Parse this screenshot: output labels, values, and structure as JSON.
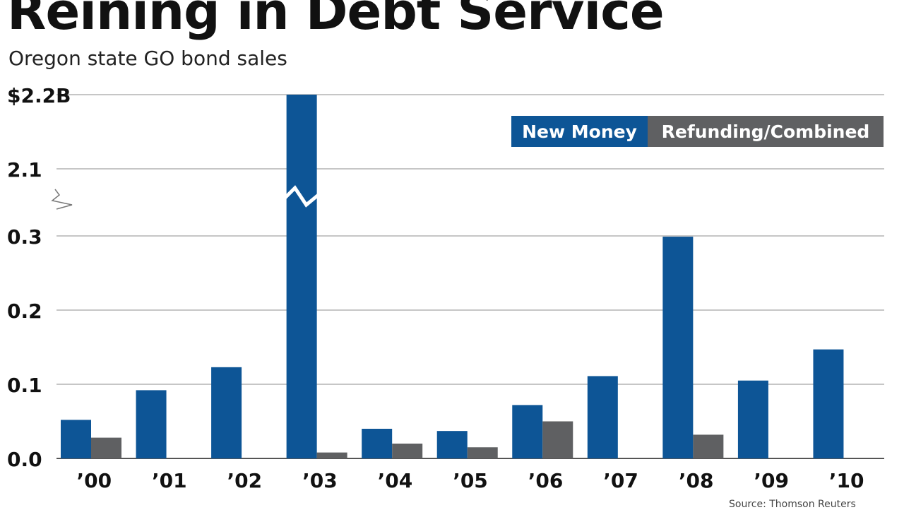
{
  "title": "Reining in Debt Service",
  "subtitle": "Oregon state GO bond sales",
  "source": "Source: Thomson Reuters",
  "colors": {
    "new_money": "#0d5596",
    "refunding": "#5f6062",
    "grid": "#b3b3b3"
  },
  "chart_data": {
    "type": "bar",
    "title": "Reining in Debt Service",
    "subtitle": "Oregon state GO bond sales",
    "xlabel": "",
    "ylabel": "",
    "y_ticks": [
      "0.0",
      "0.1",
      "0.2",
      "0.3",
      "2.1",
      "$2.2B"
    ],
    "axis_break": "between 0.3 and 2.1",
    "grid": true,
    "legend_position": "top-right",
    "categories": [
      "'00",
      "'01",
      "'02",
      "'03",
      "'04",
      "'05",
      "'06",
      "'07",
      "'08",
      "'09",
      "'10"
    ],
    "series": [
      {
        "name": "New Money",
        "values": [
          0.052,
          0.092,
          0.123,
          2.2,
          0.04,
          0.037,
          0.072,
          0.111,
          0.299,
          0.105,
          0.147
        ]
      },
      {
        "name": "Refunding/Combined",
        "values": [
          0.028,
          0,
          0,
          0.008,
          0.02,
          0.015,
          0.05,
          0,
          0.032,
          0,
          0
        ]
      }
    ]
  }
}
